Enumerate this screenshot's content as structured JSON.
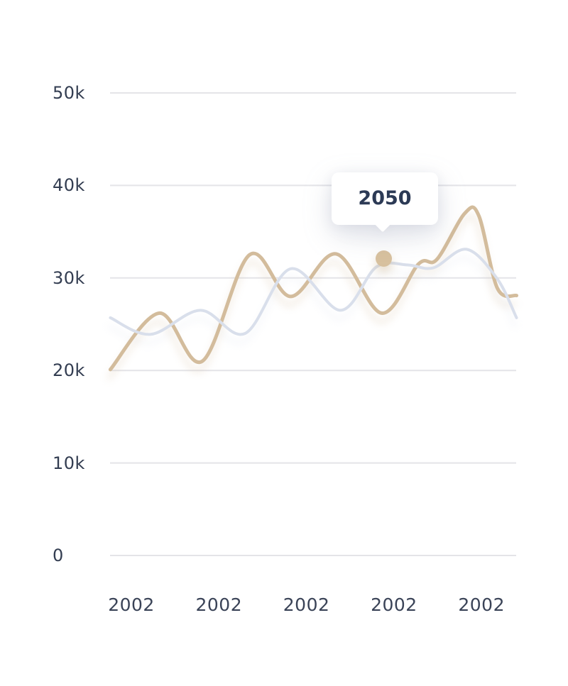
{
  "chart": {
    "background": "#ffffff",
    "tooltip": {
      "label": "2050"
    },
    "marker_color": "#d8c19e",
    "gridline_color": "#e4e4e8",
    "axis_label_color": "#333d51"
  },
  "chart_data": {
    "type": "line",
    "title": "",
    "xlabel": "",
    "ylabel": "",
    "x_tick_labels": [
      "2002",
      "2002",
      "2002",
      "2002",
      "2002"
    ],
    "y_tick_labels": [
      "50k",
      "40k",
      "30k",
      "20k",
      "10k",
      "0"
    ],
    "ylim": [
      0,
      50
    ],
    "y_unit": "thousands",
    "grid": "horizontal",
    "legend": "none",
    "series": [
      {
        "name": "highlight-series",
        "color": "#d3bc9c",
        "line_width": 5,
        "points": [
          [
            -0.24,
            20.1
          ],
          [
            0.32,
            26.2
          ],
          [
            0.81,
            21.0
          ],
          [
            1.35,
            32.5
          ],
          [
            1.82,
            28.0
          ],
          [
            2.34,
            32.6
          ],
          [
            2.86,
            26.2
          ],
          [
            3.28,
            31.5
          ],
          [
            3.49,
            32.0
          ],
          [
            3.81,
            37.0
          ],
          [
            3.97,
            36.7
          ],
          [
            4.18,
            28.9
          ],
          [
            4.4,
            28.1
          ]
        ]
      },
      {
        "name": "secondary-series",
        "color": "#d9dfeb",
        "line_width": 4,
        "points": [
          [
            -0.24,
            25.7
          ],
          [
            0.22,
            23.9
          ],
          [
            0.79,
            26.5
          ],
          [
            1.3,
            24.0
          ],
          [
            1.82,
            31.0
          ],
          [
            2.39,
            26.5
          ],
          [
            2.8,
            31.2
          ],
          [
            3.16,
            31.4
          ],
          [
            3.45,
            31.1
          ],
          [
            3.83,
            33.1
          ],
          [
            4.18,
            29.9
          ],
          [
            4.4,
            25.7
          ]
        ]
      }
    ],
    "highlighted_point": {
      "x": 2.88,
      "y": 32.1,
      "label": "2050"
    }
  }
}
